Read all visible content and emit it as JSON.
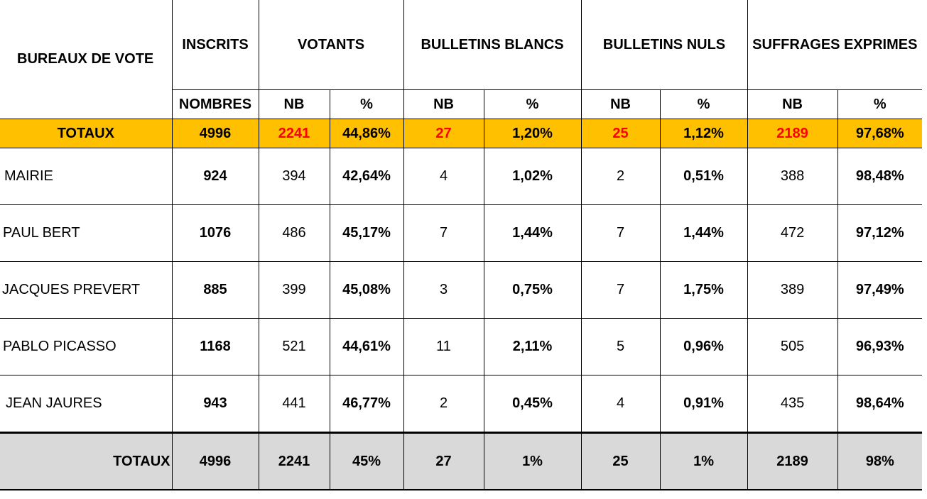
{
  "headers": {
    "bureaux": "BUREAUX DE VOTE",
    "inscrits": "INSCRITS",
    "votants": "VOTANTS",
    "blancs": "BULLETINS BLANCS",
    "nuls": "BULLETINS NULS",
    "exprimes": "SUFFRAGES EXPRIMES"
  },
  "subheaders": {
    "nombres": "NOMBRES",
    "nb": "NB",
    "pct": "%"
  },
  "totaux_top": {
    "label": "TOTAUX",
    "inscrits": "4996",
    "votants_nb": "2241",
    "votants_pct": "44,86%",
    "blancs_nb": "27",
    "blancs_pct": "1,20%",
    "nuls_nb": "25",
    "nuls_pct": "1,12%",
    "exprimes_nb": "2189",
    "exprimes_pct": "97,68%"
  },
  "rows": [
    {
      "name": " MAIRIE",
      "inscrits": "924",
      "votants_nb": "394",
      "votants_pct": "42,64%",
      "blancs_nb": "4",
      "blancs_pct": "1,02%",
      "nuls_nb": "2",
      "nuls_pct": "0,51%",
      "exprimes_nb": "388",
      "exprimes_pct": "98,48%"
    },
    {
      "name": " PAUL BERT",
      "inscrits": "1076",
      "votants_nb": "486",
      "votants_pct": "45,17%",
      "blancs_nb": "7",
      "blancs_pct": "1,44%",
      "nuls_nb": "7",
      "nuls_pct": "1,44%",
      "exprimes_nb": "472",
      "exprimes_pct": "97,12%"
    },
    {
      "name": "JACQUES PREVERT",
      "inscrits": "885",
      "votants_nb": "399",
      "votants_pct": "45,08%",
      "blancs_nb": "3",
      "blancs_pct": "0,75%",
      "nuls_nb": "7",
      "nuls_pct": "1,75%",
      "exprimes_nb": "389",
      "exprimes_pct": "97,49%"
    },
    {
      "name": " PABLO PICASSO",
      "inscrits": "1168",
      "votants_nb": "521",
      "votants_pct": "44,61%",
      "blancs_nb": "11",
      "blancs_pct": "2,11%",
      "nuls_nb": "5",
      "nuls_pct": "0,96%",
      "exprimes_nb": "505",
      "exprimes_pct": "96,93%"
    },
    {
      "name": "  JEAN JAURES",
      "inscrits": "943",
      "votants_nb": "441",
      "votants_pct": "46,77%",
      "blancs_nb": "2",
      "blancs_pct": "0,45%",
      "nuls_nb": "4",
      "nuls_pct": "0,91%",
      "exprimes_nb": "435",
      "exprimes_pct": "98,64%"
    }
  ],
  "totaux_bottom": {
    "label": "TOTAUX",
    "inscrits": "4996",
    "votants_nb": "2241",
    "votants_pct": "45%",
    "blancs_nb": "27",
    "blancs_pct": "1%",
    "nuls_nb": "25",
    "nuls_pct": "1%",
    "exprimes_nb": "2189",
    "exprimes_pct": "98%"
  },
  "colors": {
    "totaux_top_bg": "#ffc000",
    "totaux_bottom_bg": "#d9d9d9",
    "highlight_text": "#ff0000"
  }
}
